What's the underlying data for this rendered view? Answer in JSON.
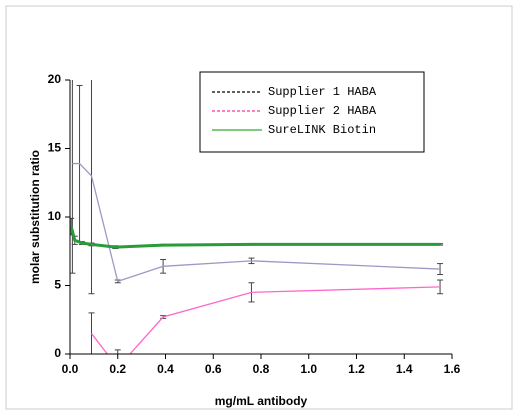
{
  "chart_data": {
    "type": "line",
    "x_label": "mg/mL antibody",
    "y_label": "molar substitution ratio",
    "xlim": [
      0,
      1.6
    ],
    "ylim": [
      0,
      20
    ],
    "xticks": [
      {
        "value": 0,
        "label": "0.0"
      },
      0.2,
      0.4,
      0.6,
      0.8,
      {
        "value": 1,
        "label": "1.0"
      },
      1.2,
      1.4,
      1.6
    ],
    "yticks": [
      0,
      5,
      10,
      15,
      20
    ],
    "legend_position": "upper right",
    "series": [
      {
        "name": "Supplier 1 HABA",
        "color": "#000000",
        "line_color": "#9a9ac4",
        "dash": true,
        "x": [
          0.01,
          0.04,
          0.09,
          0.2,
          0.39,
          0.76,
          1.55
        ],
        "values": [
          13.9,
          13.9,
          13,
          5.3,
          6.4,
          6.8,
          6.2
        ],
        "errors": [
          8,
          5.7,
          8.6,
          0.1,
          0.5,
          0.2,
          0.4
        ]
      },
      {
        "name": "Supplier 2 HABA",
        "color": "#ff3399",
        "line_color": "#ff66cc",
        "dash": true,
        "x": [
          0.09,
          0.2,
          0.39,
          0.76,
          1.55
        ],
        "values": [
          1.5,
          -1,
          2.7,
          4.5,
          4.9
        ],
        "errors": [
          1.5,
          1.3,
          0.1,
          0.7,
          0.5
        ]
      },
      {
        "name": "SureLINK Biotin",
        "color": "#33aa33",
        "line_color": "#2a9a3a",
        "dash": false,
        "x": [
          0.005,
          0.02,
          0.05,
          0.09,
          0.19,
          0.39,
          0.76,
          1.55
        ],
        "values": [
          9.3,
          8.3,
          8.1,
          8.0,
          7.8,
          7.95,
          8.0,
          8.0
        ],
        "errors": [
          0.6,
          0.3,
          0.1,
          0.1,
          0.1,
          0.05,
          0.05,
          0.05
        ]
      }
    ]
  }
}
